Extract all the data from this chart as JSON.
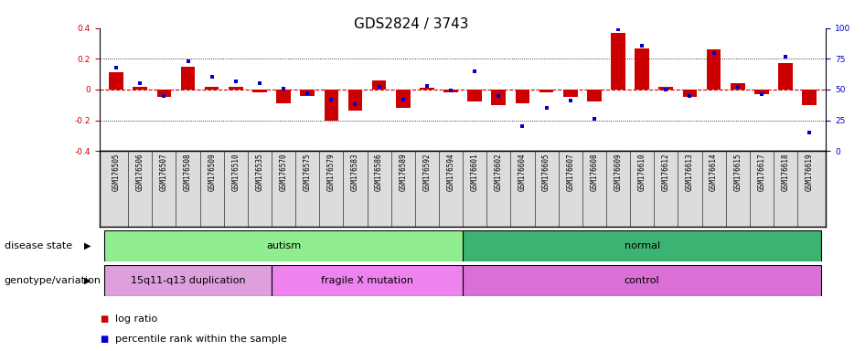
{
  "title": "GDS2824 / 3743",
  "samples": [
    "GSM176505",
    "GSM176506",
    "GSM176507",
    "GSM176508",
    "GSM176509",
    "GSM176510",
    "GSM176535",
    "GSM176570",
    "GSM176575",
    "GSM176579",
    "GSM176583",
    "GSM176586",
    "GSM176589",
    "GSM176592",
    "GSM176594",
    "GSM176601",
    "GSM176602",
    "GSM176604",
    "GSM176605",
    "GSM176607",
    "GSM176608",
    "GSM176609",
    "GSM176610",
    "GSM176612",
    "GSM176613",
    "GSM176614",
    "GSM176615",
    "GSM176617",
    "GSM176618",
    "GSM176619"
  ],
  "log_ratio": [
    0.11,
    0.02,
    -0.05,
    0.15,
    0.02,
    0.02,
    -0.02,
    -0.09,
    -0.04,
    -0.2,
    -0.14,
    0.06,
    -0.12,
    0.01,
    -0.02,
    -0.08,
    -0.1,
    -0.09,
    -0.02,
    -0.05,
    -0.08,
    0.37,
    0.27,
    0.02,
    -0.05,
    0.26,
    0.04,
    -0.03,
    0.17,
    -0.1
  ],
  "percentile": [
    68,
    55,
    45,
    73,
    60,
    57,
    55,
    51,
    47,
    42,
    38,
    52,
    42,
    53,
    49,
    65,
    45,
    20,
    35,
    41,
    26,
    99,
    86,
    50,
    45,
    80,
    52,
    46,
    77,
    15
  ],
  "disease_state_groups": [
    {
      "label": "autism",
      "start": 0,
      "end": 14,
      "color": "#90EE90"
    },
    {
      "label": "normal",
      "start": 15,
      "end": 29,
      "color": "#3CB371"
    }
  ],
  "genotype_groups": [
    {
      "label": "15q11-q13 duplication",
      "start": 0,
      "end": 6,
      "color": "#DDA0DD"
    },
    {
      "label": "fragile X mutation",
      "start": 7,
      "end": 14,
      "color": "#EE82EE"
    },
    {
      "label": "control",
      "start": 15,
      "end": 29,
      "color": "#DA70D6"
    }
  ],
  "ylim_left": [
    -0.4,
    0.4
  ],
  "ylim_right": [
    0,
    100
  ],
  "yticks_left": [
    -0.4,
    -0.2,
    0.0,
    0.2,
    0.4
  ],
  "yticks_right": [
    0,
    25,
    50,
    75,
    100
  ],
  "bar_color": "#CC0000",
  "scatter_color": "#0000CC",
  "hline_color": "#CC0000",
  "title_fontsize": 11,
  "tick_fontsize": 6.5,
  "label_fontsize": 8
}
